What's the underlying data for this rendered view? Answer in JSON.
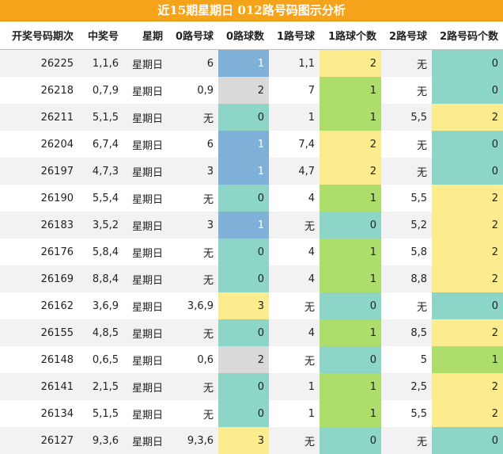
{
  "title": "近15期星期日 012路号码图示分析",
  "headers": [
    "开奖号码期次",
    "中奖号",
    "星期",
    "0路号球",
    "0路球数",
    "1路号球",
    "1路球个数",
    "2路号球",
    "2路号码个数"
  ],
  "colors": {
    "blue": "#7fb1d8",
    "gray": "#d9d9d9",
    "teal": "#8dd6c7",
    "yellow": "#fcec8d",
    "green": "#addd6a",
    "header_bar": "#f5a31b"
  },
  "rows": [
    {
      "issue": "26225",
      "number": "1,1,6",
      "weekday": "星期日",
      "r0_balls": "6",
      "r0_count": "1",
      "r1_balls": "1,1",
      "r1_count": "2",
      "r2_balls": "无",
      "r2_count": "0"
    },
    {
      "issue": "26218",
      "number": "0,7,9",
      "weekday": "星期日",
      "r0_balls": "0,9",
      "r0_count": "2",
      "r1_balls": "7",
      "r1_count": "1",
      "r2_balls": "无",
      "r2_count": "0"
    },
    {
      "issue": "26211",
      "number": "5,1,5",
      "weekday": "星期日",
      "r0_balls": "无",
      "r0_count": "0",
      "r1_balls": "1",
      "r1_count": "1",
      "r2_balls": "5,5",
      "r2_count": "2"
    },
    {
      "issue": "26204",
      "number": "6,7,4",
      "weekday": "星期日",
      "r0_balls": "6",
      "r0_count": "1",
      "r1_balls": "7,4",
      "r1_count": "2",
      "r2_balls": "无",
      "r2_count": "0"
    },
    {
      "issue": "26197",
      "number": "4,7,3",
      "weekday": "星期日",
      "r0_balls": "3",
      "r0_count": "1",
      "r1_balls": "4,7",
      "r1_count": "2",
      "r2_balls": "无",
      "r2_count": "0"
    },
    {
      "issue": "26190",
      "number": "5,5,4",
      "weekday": "星期日",
      "r0_balls": "无",
      "r0_count": "0",
      "r1_balls": "4",
      "r1_count": "1",
      "r2_balls": "5,5",
      "r2_count": "2"
    },
    {
      "issue": "26183",
      "number": "3,5,2",
      "weekday": "星期日",
      "r0_balls": "3",
      "r0_count": "1",
      "r1_balls": "无",
      "r1_count": "0",
      "r2_balls": "5,2",
      "r2_count": "2"
    },
    {
      "issue": "26176",
      "number": "5,8,4",
      "weekday": "星期日",
      "r0_balls": "无",
      "r0_count": "0",
      "r1_balls": "4",
      "r1_count": "1",
      "r2_balls": "5,8",
      "r2_count": "2"
    },
    {
      "issue": "26169",
      "number": "8,8,4",
      "weekday": "星期日",
      "r0_balls": "无",
      "r0_count": "0",
      "r1_balls": "4",
      "r1_count": "1",
      "r2_balls": "8,8",
      "r2_count": "2"
    },
    {
      "issue": "26162",
      "number": "3,6,9",
      "weekday": "星期日",
      "r0_balls": "3,6,9",
      "r0_count": "3",
      "r1_balls": "无",
      "r1_count": "0",
      "r2_balls": "无",
      "r2_count": "0"
    },
    {
      "issue": "26155",
      "number": "4,8,5",
      "weekday": "星期日",
      "r0_balls": "无",
      "r0_count": "0",
      "r1_balls": "4",
      "r1_count": "1",
      "r2_balls": "8,5",
      "r2_count": "2"
    },
    {
      "issue": "26148",
      "number": "0,6,5",
      "weekday": "星期日",
      "r0_balls": "0,6",
      "r0_count": "2",
      "r1_balls": "无",
      "r1_count": "0",
      "r2_balls": "5",
      "r2_count": "1"
    },
    {
      "issue": "26141",
      "number": "2,1,5",
      "weekday": "星期日",
      "r0_balls": "无",
      "r0_count": "0",
      "r1_balls": "1",
      "r1_count": "1",
      "r2_balls": "2,5",
      "r2_count": "2"
    },
    {
      "issue": "26134",
      "number": "5,1,5",
      "weekday": "星期日",
      "r0_balls": "无",
      "r0_count": "0",
      "r1_balls": "1",
      "r1_count": "1",
      "r2_balls": "5,5",
      "r2_count": "2"
    },
    {
      "issue": "26127",
      "number": "9,3,6",
      "weekday": "星期日",
      "r0_balls": "9,3,6",
      "r0_count": "3",
      "r1_balls": "无",
      "r1_count": "0",
      "r2_balls": "无",
      "r2_count": "0"
    }
  ]
}
